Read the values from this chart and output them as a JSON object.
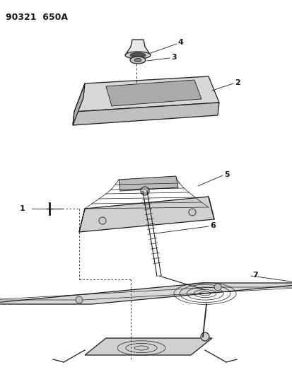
{
  "title": "90321  650A",
  "bg": "#ffffff",
  "lc": "#1a1a1a",
  "fig_w": 4.14,
  "fig_h": 5.33,
  "dpi": 100
}
